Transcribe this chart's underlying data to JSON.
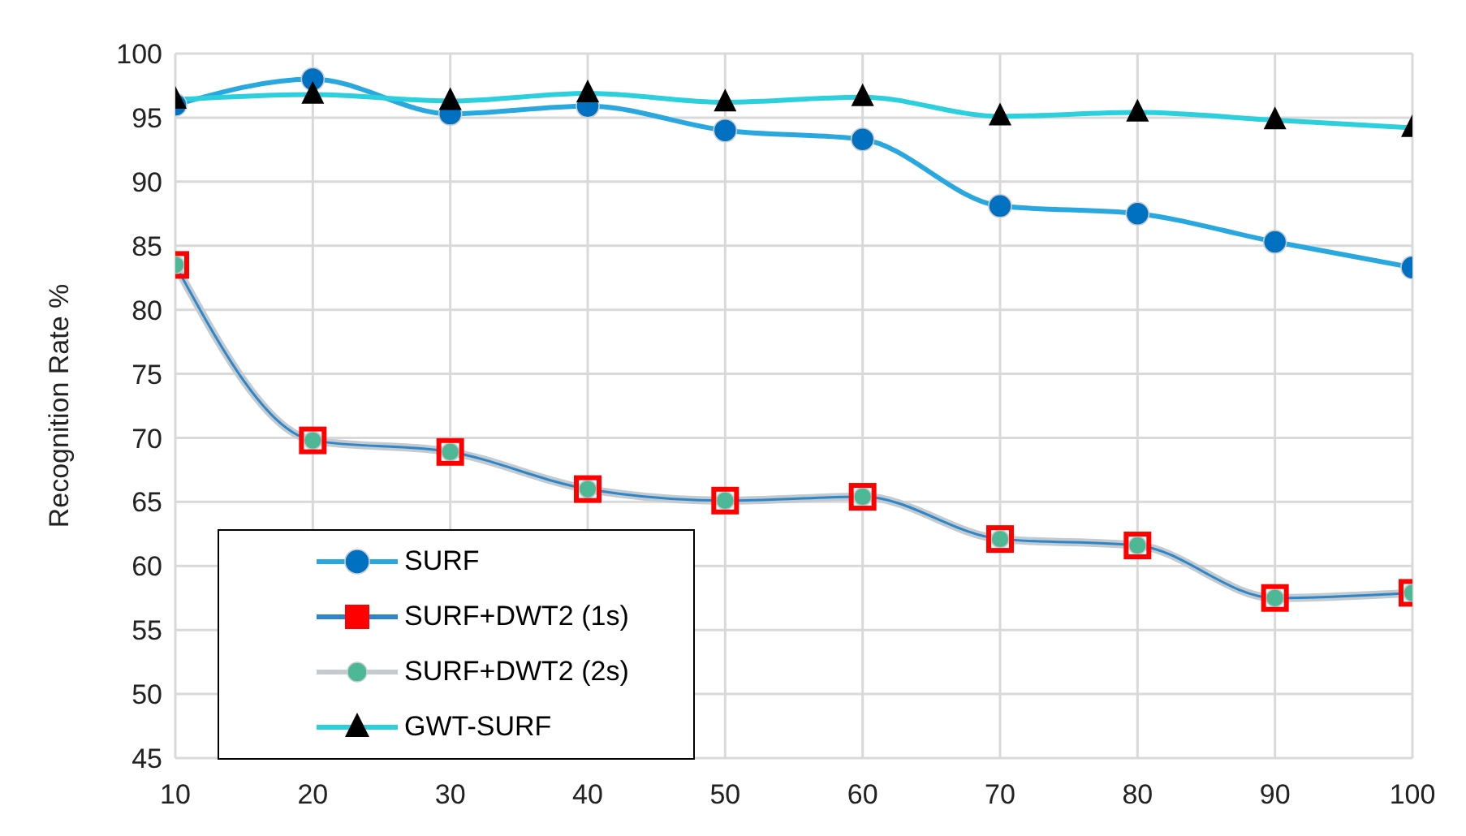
{
  "chart_data": {
    "type": "line",
    "ylabel": "Recognition Rate %",
    "x": [
      10,
      20,
      30,
      40,
      50,
      60,
      70,
      80,
      90,
      100
    ],
    "xlim": [
      10,
      100
    ],
    "xticks": [
      10,
      20,
      30,
      40,
      50,
      60,
      70,
      80,
      90,
      100
    ],
    "ylim": [
      45,
      100
    ],
    "yticks": [
      45,
      50,
      55,
      60,
      65,
      70,
      75,
      80,
      85,
      90,
      95,
      100
    ],
    "grid": true,
    "legend": "bottom left",
    "series": [
      {
        "name": "SURF",
        "color": "#29a8e0",
        "marker": "circle",
        "values": [
          96,
          98,
          95.3,
          95.9,
          94,
          93.3,
          88.1,
          87.5,
          85.3,
          83.3
        ]
      },
      {
        "name": "SURF+DWT2 (1s)",
        "color": "#2e86c8",
        "marker": "square",
        "values": [
          83.5,
          69.8,
          68.9,
          66,
          65.1,
          65.4,
          62.1,
          61.6,
          57.5,
          57.9
        ]
      },
      {
        "name": "SURF+DWT2 (2s)",
        "color": "#c3cbd0",
        "marker": "circle",
        "values": [
          83.5,
          69.8,
          68.9,
          66,
          65.1,
          65.4,
          62.1,
          61.6,
          57.5,
          57.9
        ]
      },
      {
        "name": "GWT-SURF",
        "color": "#2ccfdc",
        "marker": "triangle",
        "values": [
          96.4,
          96.8,
          96.3,
          96.9,
          96.2,
          96.6,
          95.1,
          95.4,
          94.8,
          94.2
        ]
      }
    ]
  }
}
